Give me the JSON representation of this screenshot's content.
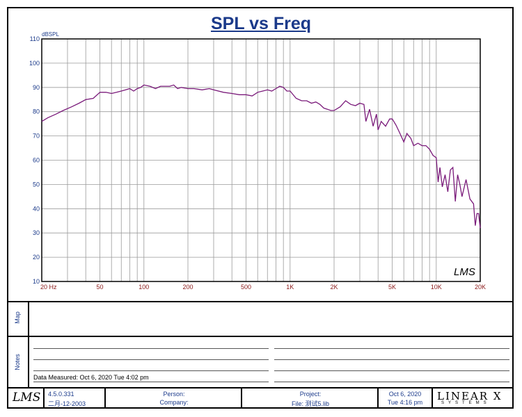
{
  "colors": {
    "accent": "#1b3a8a",
    "curve": "#7a1a7a",
    "tick": "#8b1a1a"
  },
  "chart_data": {
    "type": "line",
    "title": "SPL vs Freq",
    "ylabel": "dBSPL",
    "xscale": "log",
    "xlim": [
      20,
      20000
    ],
    "ylim": [
      10,
      110
    ],
    "yticks": [
      10,
      20,
      30,
      40,
      50,
      60,
      70,
      80,
      90,
      100,
      110
    ],
    "xtick_labels": [
      {
        "v": 20,
        "t": "20 Hz"
      },
      {
        "v": 50,
        "t": "50"
      },
      {
        "v": 100,
        "t": "100"
      },
      {
        "v": 200,
        "t": "200"
      },
      {
        "v": 500,
        "t": "500"
      },
      {
        "v": 1000,
        "t": "1K"
      },
      {
        "v": 2000,
        "t": "2K"
      },
      {
        "v": 5000,
        "t": "5K"
      },
      {
        "v": 10000,
        "t": "10K"
      },
      {
        "v": 20000,
        "t": "20K"
      }
    ],
    "series": [
      {
        "name": "SPL",
        "x": [
          20,
          22,
          25,
          28,
          32,
          36,
          40,
          45,
          50,
          55,
          60,
          65,
          70,
          75,
          80,
          85,
          90,
          95,
          100,
          110,
          120,
          130,
          140,
          150,
          160,
          170,
          180,
          200,
          220,
          250,
          280,
          300,
          350,
          400,
          450,
          500,
          550,
          600,
          650,
          700,
          750,
          800,
          850,
          900,
          950,
          1000,
          1100,
          1200,
          1300,
          1400,
          1500,
          1600,
          1700,
          1800,
          1900,
          2000,
          2200,
          2400,
          2600,
          2800,
          3000,
          3200,
          3300,
          3500,
          3700,
          3900,
          4000,
          4200,
          4500,
          4800,
          5000,
          5300,
          5600,
          6000,
          6300,
          6700,
          7000,
          7500,
          8000,
          8500,
          9000,
          9500,
          10000,
          10300,
          10600,
          11000,
          11500,
          12000,
          12500,
          13000,
          13500,
          14000,
          14500,
          15000,
          16000,
          17000,
          18000,
          18500,
          19000,
          19500,
          20000
        ],
        "y": [
          76,
          77.5,
          79,
          80.5,
          82,
          83.5,
          85,
          85.5,
          88,
          88,
          87.5,
          88,
          88.5,
          89,
          89.5,
          88.5,
          89.5,
          90,
          91,
          90.5,
          89.5,
          90.5,
          90.5,
          90.5,
          91,
          89.5,
          90,
          89.5,
          89.5,
          89,
          89.5,
          89,
          88,
          87.5,
          87,
          87,
          86.5,
          88,
          88.5,
          89,
          88.5,
          89.5,
          90.5,
          90,
          88.5,
          88.5,
          85.5,
          84.5,
          84.5,
          83.5,
          84,
          83,
          81.5,
          81,
          80.5,
          80.5,
          82,
          84.5,
          83,
          82.5,
          83.5,
          83,
          76,
          81,
          74,
          79,
          72.5,
          76,
          74,
          77,
          77,
          74.5,
          71.5,
          67.5,
          71,
          69,
          66,
          67,
          66,
          66,
          64.5,
          62,
          61,
          51,
          57,
          49,
          54,
          47,
          56,
          57,
          43,
          54,
          50,
          45,
          52,
          44,
          42,
          33,
          38,
          38,
          32
        ]
      }
    ]
  },
  "panel_labels": {
    "map": "Map",
    "notes": "Notes"
  },
  "notes": {
    "date_measured": "Data Measured: Oct  6, 2020   Tue  4:02 pm"
  },
  "footer": {
    "logo": "LMS",
    "version": "4.5.0.331",
    "build_date": "二月-12-2003",
    "person_label": "Person:",
    "company_label": "Company:",
    "project_label": "Project:",
    "file_label": "File: 测试5.lib",
    "date": "Oct  6, 2020",
    "time": "Tue  4:16 pm",
    "brand_top": "LINEAR X",
    "brand_bottom": "SYSTEMS"
  },
  "watermark": "LMS"
}
